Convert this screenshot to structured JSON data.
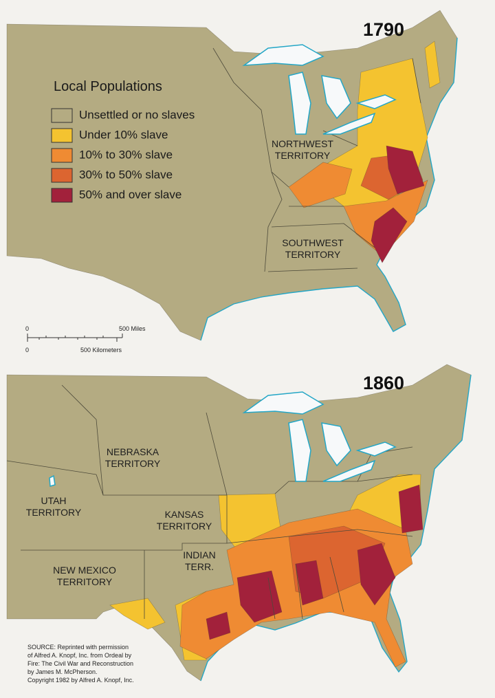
{
  "maps": [
    {
      "year": "1790",
      "labels": [
        {
          "lines": [
            "NORTHWEST",
            "TERRITORY"
          ]
        },
        {
          "lines": [
            "SOUTHWEST",
            "TERRITORY"
          ]
        }
      ]
    },
    {
      "year": "1860",
      "labels": [
        {
          "lines": [
            "NEBRASKA",
            "TERRITORY"
          ]
        },
        {
          "lines": [
            "UTAH",
            "TERRITORY"
          ]
        },
        {
          "lines": [
            "KANSAS",
            "TERRITORY"
          ]
        },
        {
          "lines": [
            "INDIAN",
            "TERR."
          ]
        },
        {
          "lines": [
            "NEW MEXICO",
            "TERRITORY"
          ]
        }
      ]
    }
  ],
  "legend": {
    "title": "Local Populations",
    "items": [
      {
        "label": "Unsettled or no slaves",
        "color": "#b4ab82"
      },
      {
        "label": "Under 10% slave",
        "color": "#f4c330"
      },
      {
        "label": "10% to 30% slave",
        "color": "#ef8b33"
      },
      {
        "label": "30% to 50% slave",
        "color": "#dc6530"
      },
      {
        "label": "50% and over slave",
        "color": "#a2213b"
      }
    ]
  },
  "scale": {
    "miles_zero": "0",
    "miles": "500 Miles",
    "km_zero": "0",
    "km": "500 Kilometers"
  },
  "source": [
    "SOURCE:  Reprinted with permission",
    "of Alfred A. Knopf, Inc. from Ordeal by",
    "Fire: The Civil War and Reconstruction",
    "by James M. McPherson.",
    "Copyright 1982 by Alfred A. Knopf, Inc."
  ]
}
